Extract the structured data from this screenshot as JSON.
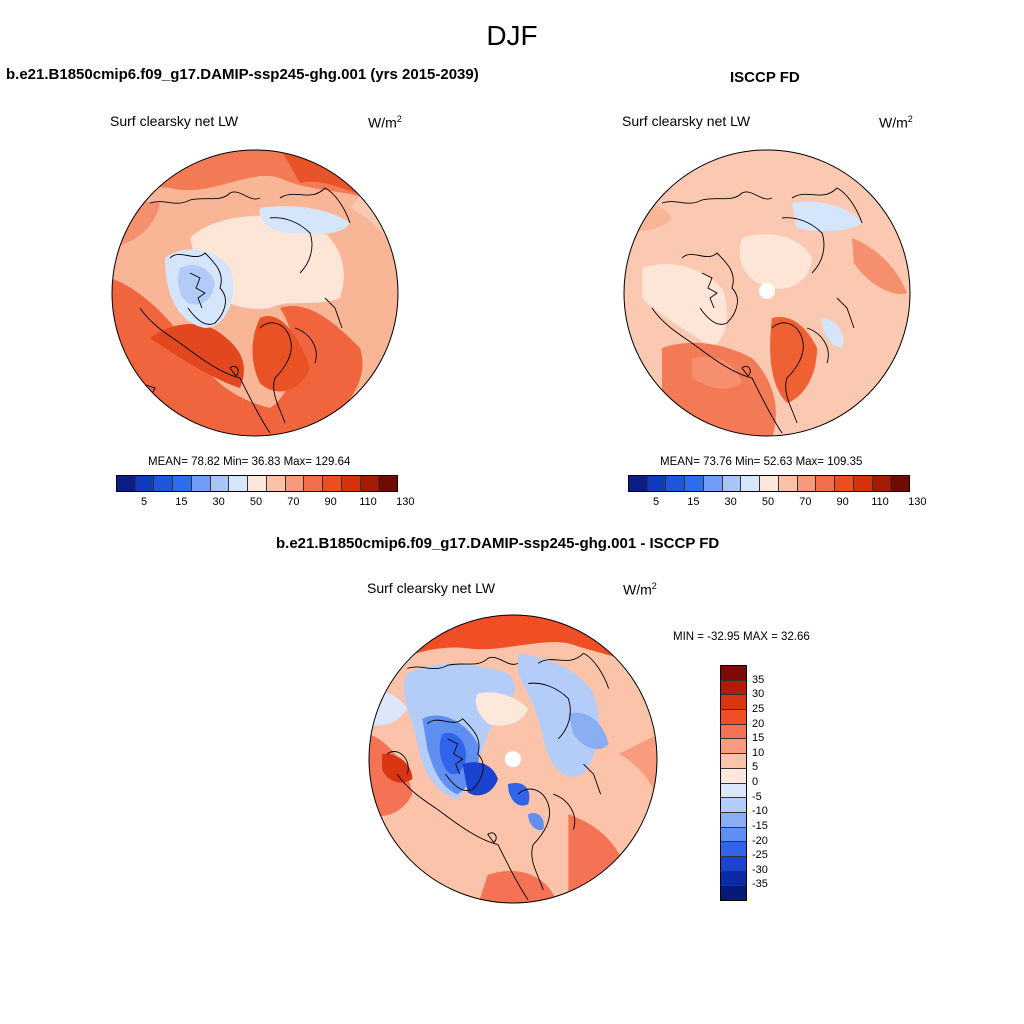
{
  "figure": {
    "season": "DJF"
  },
  "panels": [
    {
      "title": "b.e21.B1850cmip6.f09_g17.DAMIP-ssp245-ghg.001 (yrs 2015-2039)",
      "variable": "Surf clearsky net LW",
      "units": "W/m",
      "units_exp": "2",
      "stats": {
        "mean_label": "MEAN=",
        "mean": "78.82",
        "min_label": "Min=",
        "min": "36.83",
        "max_label": "Max=",
        "max": "129.64"
      },
      "colorbar": {
        "colors": [
          "#0a1e84",
          "#0f3bbd",
          "#1f56dd",
          "#2d6ef0",
          "#6f9cf5",
          "#a9c5f8",
          "#d5e5fb",
          "#fde7dc",
          "#fbc2a8",
          "#f79a79",
          "#f36e4e",
          "#ee4c22",
          "#d6320f",
          "#a61b05",
          "#6e0e00"
        ],
        "ticks": [
          "5",
          "15",
          "30",
          "50",
          "70",
          "90",
          "110",
          "130"
        ]
      }
    },
    {
      "title": "ISCCP FD",
      "variable": "Surf clearsky net LW",
      "units": "W/m",
      "units_exp": "2",
      "stats": {
        "mean_label": "MEAN=",
        "mean": "73.76",
        "min_label": "Min=",
        "min": "52.63",
        "max_label": "Max=",
        "max": "109.35"
      },
      "colorbar": {
        "colors": [
          "#0a1e84",
          "#0f3bbd",
          "#1f56dd",
          "#2d6ef0",
          "#6f9cf5",
          "#a9c5f8",
          "#d5e5fb",
          "#fde7dc",
          "#fbc2a8",
          "#f79a79",
          "#f36e4e",
          "#ee4c22",
          "#d6320f",
          "#a61b05",
          "#6e0e00"
        ],
        "ticks": [
          "5",
          "15",
          "30",
          "50",
          "70",
          "90",
          "110",
          "130"
        ]
      }
    },
    {
      "title": "b.e21.B1850cmip6.f09_g17.DAMIP-ssp245-ghg.001 - ISCCP FD",
      "variable": "Surf clearsky net LW",
      "units": "W/m",
      "units_exp": "2",
      "stats_text": "MIN = -32.95 MAX =  32.66",
      "colorbar": {
        "colors": [
          "#7e0a05",
          "#b01d06",
          "#d93511",
          "#f04f26",
          "#f47355",
          "#f89b7e",
          "#fbc4aa",
          "#fde8dc",
          "#dbe8fb",
          "#b3cdf8",
          "#8aaef4",
          "#5f8ff0",
          "#3064eb",
          "#1a44cf",
          "#0c2ba3",
          "#061a7a"
        ],
        "ticks": [
          "35",
          "30",
          "25",
          "20",
          "15",
          "10",
          "5",
          "0",
          "-5",
          "-10",
          "-15",
          "-20",
          "-25",
          "-30",
          "-35"
        ]
      }
    }
  ],
  "chart_data": [
    {
      "type": "heatmap",
      "title": "b.e21.B1850cmip6.f09_g17.DAMIP-ssp245-ghg.001 (yrs 2015-2039)",
      "variable": "Surf clearsky net LW",
      "units": "W/m2",
      "projection": "north polar stereographic",
      "summary": {
        "mean": 78.82,
        "min": 36.83,
        "max": 129.64
      },
      "contour_levels": [
        5,
        15,
        30,
        50,
        70,
        90,
        110,
        130
      ]
    },
    {
      "type": "heatmap",
      "title": "ISCCP FD",
      "variable": "Surf clearsky net LW",
      "units": "W/m2",
      "projection": "north polar stereographic",
      "summary": {
        "mean": 73.76,
        "min": 52.63,
        "max": 109.35
      },
      "contour_levels": [
        5,
        15,
        30,
        50,
        70,
        90,
        110,
        130
      ]
    },
    {
      "type": "heatmap",
      "title": "b.e21.B1850cmip6.f09_g17.DAMIP-ssp245-ghg.001 - ISCCP FD",
      "variable": "Surf clearsky net LW",
      "units": "W/m2",
      "projection": "north polar stereographic",
      "summary": {
        "min": -32.95,
        "max": 32.66
      },
      "contour_levels": [
        -35,
        -30,
        -25,
        -20,
        -15,
        -10,
        -5,
        0,
        5,
        10,
        15,
        20,
        25,
        30,
        35
      ]
    }
  ]
}
